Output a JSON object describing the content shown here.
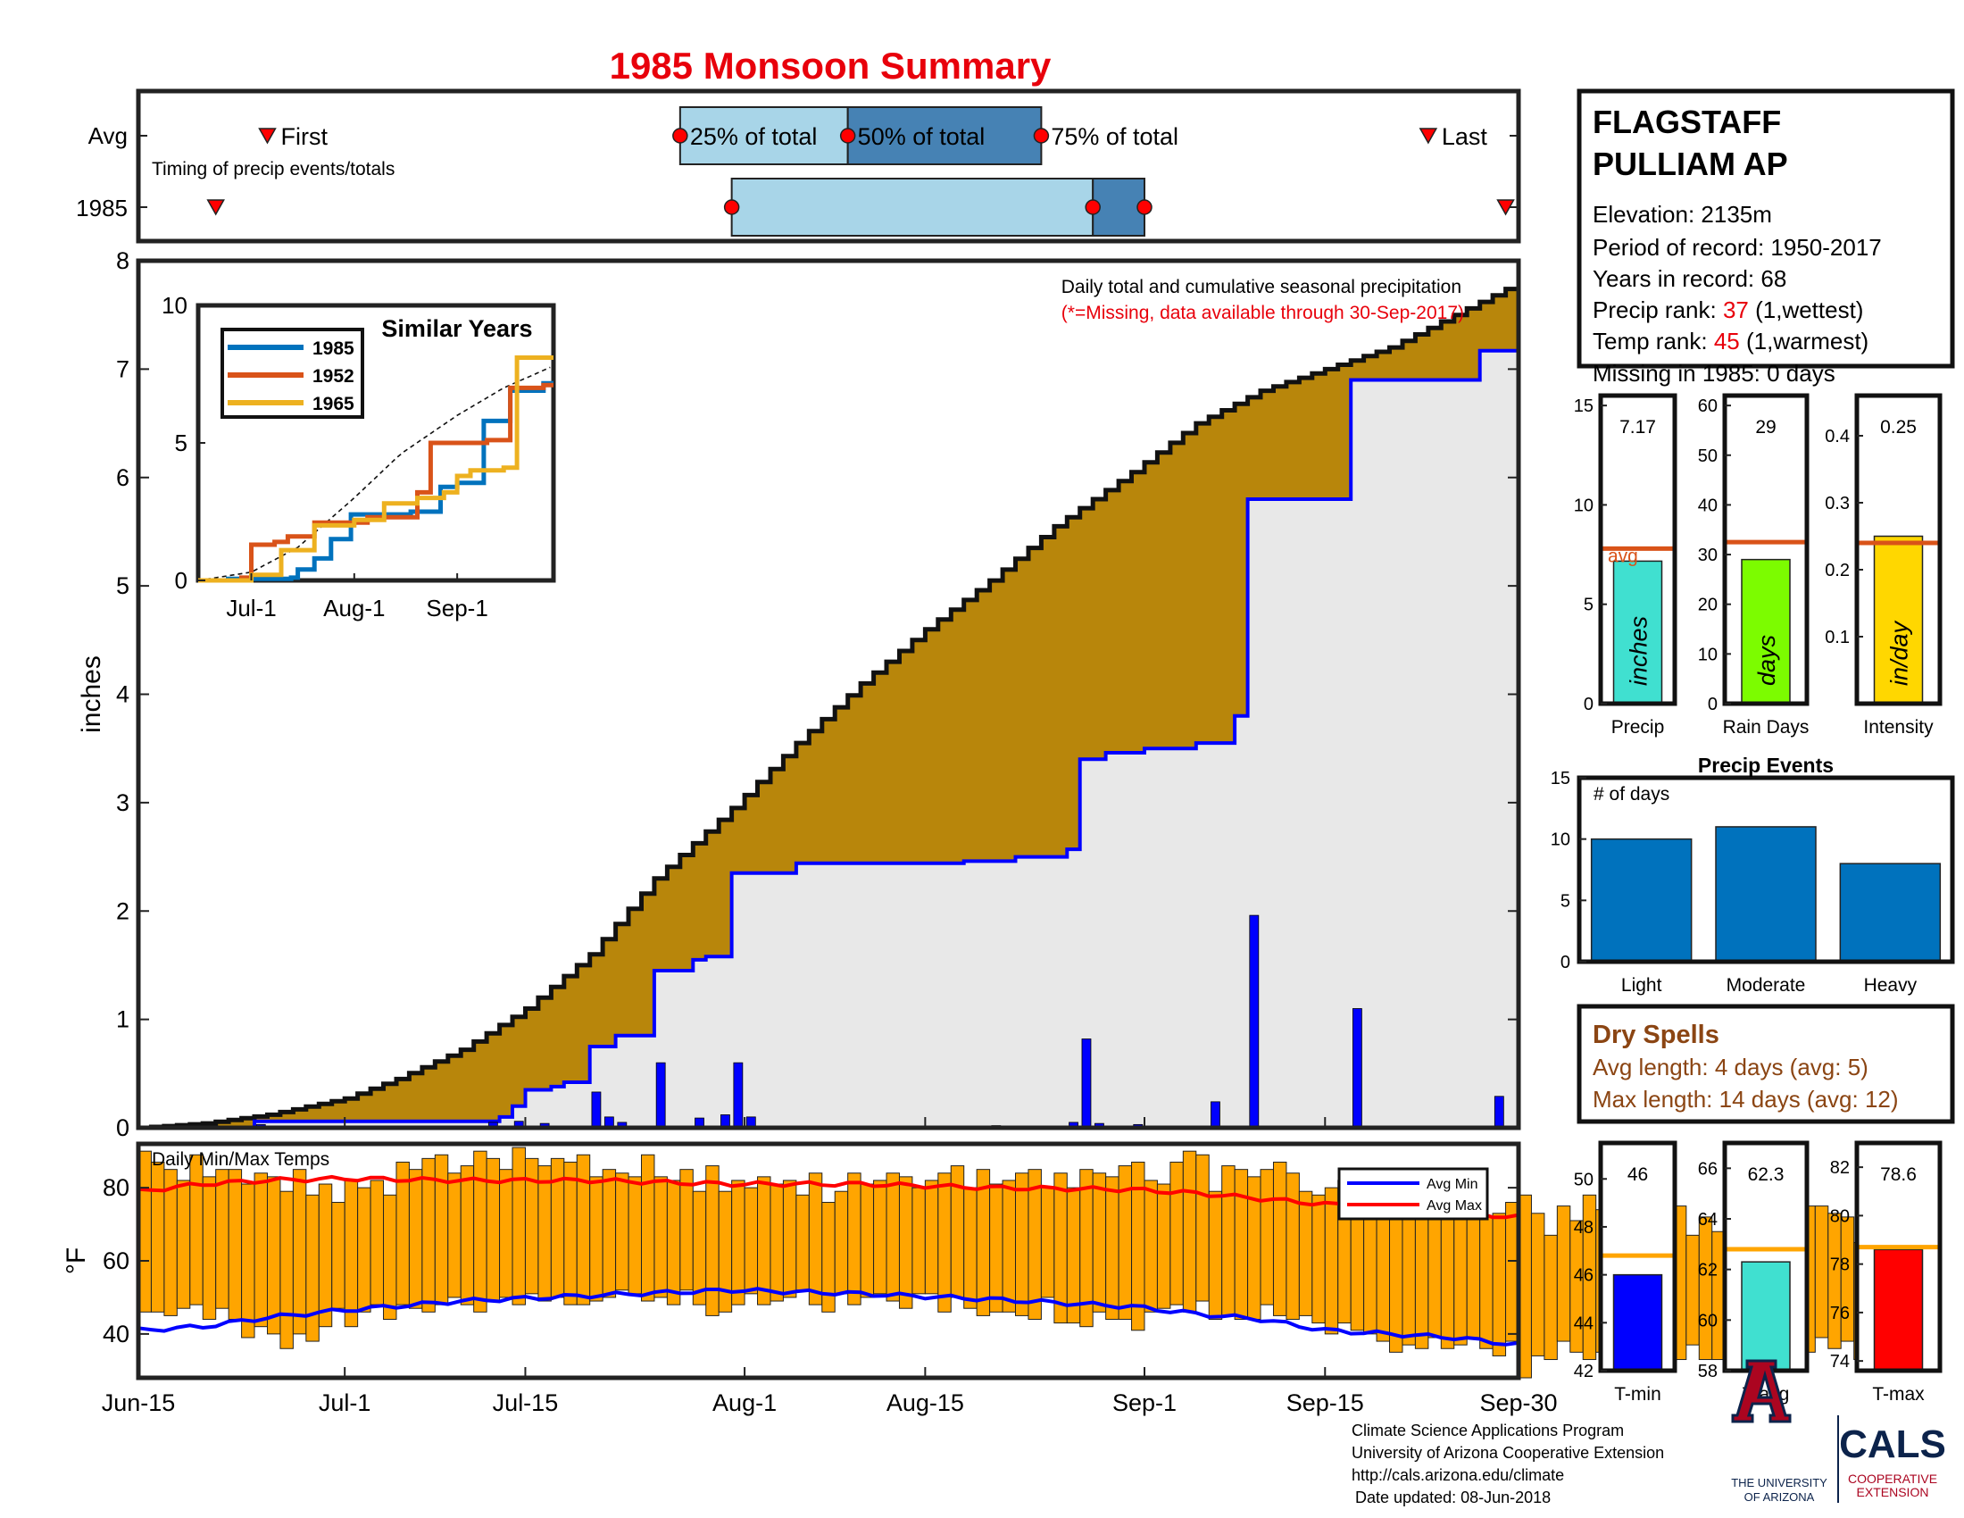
{
  "title": "1985 Monsoon Summary",
  "timing": {
    "row_avg": "Avg",
    "row_year": "1985",
    "caption": "Timing of precip events/totals",
    "first_label": "First",
    "last_label": "Last",
    "p25_label": "25% of total",
    "p50_label": "50% of total",
    "p75_label": "75% of total",
    "avg_first": "2024-06-25",
    "avg_last": "2024-09-23",
    "avg_p25": "2024-07-27",
    "avg_p50": "2024-08-09",
    "avg_p75": "2024-08-24",
    "yr_first": "2024-06-21",
    "yr_last": "2024-09-29",
    "yr_p25": "2024-07-31",
    "yr_p50": "2024-08-28",
    "yr_p75": "2024-09-01",
    "colors": {
      "light": "#a8d5e8",
      "dark": "#4682b4",
      "marker": "#ff0000"
    }
  },
  "station": {
    "name_line1": "FLAGSTAFF",
    "name_line2": "PULLIAM AP",
    "elevation": "Elevation: 2135m",
    "period": "Period of record: 1950-2017",
    "years": "Years in record: 68",
    "precip_rank_prefix": "Precip rank: ",
    "precip_rank": "37",
    "precip_rank_suffix": " (1,wettest)",
    "temp_rank_prefix": "Temp rank: ",
    "temp_rank": "45",
    "temp_rank_suffix": " (1,warmest)",
    "missing": "Missing in 1985: 0 days"
  },
  "footer": {
    "line1": "Climate Science Applications Program",
    "line2": "University of Arizona Cooperative Extension",
    "line3": "http://cals.arizona.edu/climate",
    "line4": "Date updated: 08-Jun-2018",
    "ua_name1": "THE UNIVERSITY",
    "ua_name2": "OF ARIZONA",
    "cals": "CALS",
    "cals_sub1": "COOPERATIVE",
    "cals_sub2": "EXTENSION"
  },
  "chart_data": [
    {
      "type": "area",
      "id": "cumulative",
      "annotation": "Daily total and cumulative seasonal precipitation",
      "annotation_note": "(*=Missing, data available through 30-Sep-2017)",
      "ylabel": "inches",
      "ylim": [
        0,
        8
      ],
      "yticks": [
        0,
        1,
        2,
        3,
        4,
        5,
        6,
        7,
        8
      ],
      "xlim": [
        "2024-06-15",
        "2024-09-30"
      ],
      "xticks": [
        "2024-06-15",
        "2024-07-01",
        "2024-07-15",
        "2024-08-01",
        "2024-08-15",
        "2024-09-01",
        "2024-09-15",
        "2024-09-30"
      ],
      "xticklabels": [
        "Jun-15",
        "Jul-1",
        "Jul-15",
        "Aug-1",
        "Aug-15",
        "Sep-1",
        "Sep-15",
        "Sep-30"
      ],
      "avg_cumulative": {
        "x": [
          "2024-06-15",
          "2024-06-20",
          "2024-06-25",
          "2024-07-01",
          "2024-07-05",
          "2024-07-10",
          "2024-07-15",
          "2024-07-20",
          "2024-07-25",
          "2024-07-31",
          "2024-08-05",
          "2024-08-10",
          "2024-08-15",
          "2024-08-20",
          "2024-08-25",
          "2024-08-31",
          "2024-09-05",
          "2024-09-10",
          "2024-09-15",
          "2024-09-20",
          "2024-09-25",
          "2024-09-30"
        ],
        "y": [
          0,
          0.04,
          0.12,
          0.27,
          0.45,
          0.72,
          1.1,
          1.6,
          2.3,
          2.95,
          3.55,
          4.1,
          4.6,
          5.05,
          5.55,
          6.05,
          6.5,
          6.8,
          7.0,
          7.2,
          7.5,
          7.8
        ]
      },
      "year_cumulative": {
        "x": [
          "2024-06-15",
          "2024-06-24",
          "2024-07-13",
          "2024-07-14",
          "2024-07-15",
          "2024-07-17",
          "2024-07-18",
          "2024-07-20",
          "2024-07-22",
          "2024-07-25",
          "2024-07-28",
          "2024-07-29",
          "2024-07-31",
          "2024-08-05",
          "2024-08-18",
          "2024-08-22",
          "2024-08-26",
          "2024-08-27",
          "2024-08-29",
          "2024-09-01",
          "2024-09-05",
          "2024-09-08",
          "2024-09-09",
          "2024-09-16",
          "2024-09-17",
          "2024-09-26",
          "2024-09-27",
          "2024-09-30"
        ],
        "y": [
          0,
          0.06,
          0.1,
          0.2,
          0.35,
          0.38,
          0.42,
          0.75,
          0.85,
          1.45,
          1.55,
          1.58,
          2.35,
          2.44,
          2.46,
          2.5,
          2.57,
          3.4,
          3.46,
          3.5,
          3.55,
          3.8,
          5.8,
          5.8,
          6.9,
          6.9,
          7.17,
          7.17
        ]
      },
      "daily_bars": {
        "x": [
          "2024-06-24",
          "2024-07-12",
          "2024-07-14",
          "2024-07-16",
          "2024-07-20",
          "2024-07-21",
          "2024-07-22",
          "2024-07-25",
          "2024-07-28",
          "2024-07-30",
          "2024-07-31",
          "2024-08-01",
          "2024-08-20",
          "2024-08-26",
          "2024-08-27",
          "2024-08-28",
          "2024-08-31",
          "2024-09-06",
          "2024-09-09",
          "2024-09-17",
          "2024-09-28"
        ],
        "y": [
          0.03,
          0.05,
          0.06,
          0.04,
          0.33,
          0.1,
          0.05,
          0.6,
          0.09,
          0.12,
          0.6,
          0.1,
          0.02,
          0.05,
          0.82,
          0.04,
          0.03,
          0.24,
          1.96,
          1.1,
          0.29
        ]
      },
      "colors": {
        "avg_fill": "#b8860b",
        "year_fill": "#e8e8e8",
        "year_line": "#0000ff",
        "bars": "#0000ff"
      }
    },
    {
      "type": "line",
      "id": "similar",
      "title": "Similar Years",
      "ylim": [
        0,
        10
      ],
      "yticks": [
        0,
        5,
        10
      ],
      "xlim": [
        "2024-06-15",
        "2024-09-30"
      ],
      "xticks": [
        "2024-07-01",
        "2024-08-01",
        "2024-09-01"
      ],
      "xticklabels": [
        "Jul-1",
        "Aug-1",
        "Sep-1"
      ],
      "avg": {
        "x": [
          "2024-06-15",
          "2024-07-01",
          "2024-07-15",
          "2024-08-01",
          "2024-08-15",
          "2024-09-01",
          "2024-09-15",
          "2024-09-30"
        ],
        "y": [
          0,
          0.3,
          1.2,
          3.0,
          4.6,
          6.0,
          7.0,
          7.8
        ]
      },
      "series": [
        {
          "name": "1985",
          "color": "#0072bd",
          "x": [
            "2024-06-15",
            "2024-06-24",
            "2024-07-13",
            "2024-07-15",
            "2024-07-20",
            "2024-07-25",
            "2024-07-31",
            "2024-08-18",
            "2024-08-27",
            "2024-09-01",
            "2024-09-09",
            "2024-09-17",
            "2024-09-27",
            "2024-09-30"
          ],
          "y": [
            0,
            0.06,
            0.1,
            0.4,
            0.8,
            1.5,
            2.4,
            2.5,
            3.4,
            3.55,
            5.8,
            6.9,
            7.17,
            7.17
          ]
        },
        {
          "name": "1952",
          "color": "#d95319",
          "x": [
            "2024-06-15",
            "2024-06-28",
            "2024-07-01",
            "2024-07-08",
            "2024-07-12",
            "2024-07-20",
            "2024-08-05",
            "2024-08-12",
            "2024-08-20",
            "2024-08-24",
            "2024-09-10",
            "2024-09-17",
            "2024-09-27",
            "2024-09-30"
          ],
          "y": [
            0,
            0.1,
            1.3,
            1.4,
            1.6,
            2.1,
            2.3,
            2.3,
            3.2,
            5.0,
            5.1,
            7.0,
            7.1,
            7.1
          ]
        },
        {
          "name": "1965",
          "color": "#edb120",
          "x": [
            "2024-06-15",
            "2024-07-01",
            "2024-07-10",
            "2024-07-20",
            "2024-08-01",
            "2024-08-06",
            "2024-08-10",
            "2024-08-20",
            "2024-08-28",
            "2024-09-01",
            "2024-09-05",
            "2024-09-15",
            "2024-09-19",
            "2024-09-30"
          ],
          "y": [
            0,
            0.2,
            1.1,
            2.0,
            2.2,
            2.2,
            2.8,
            3.0,
            3.2,
            3.8,
            4.0,
            4.1,
            8.1,
            8.1
          ]
        }
      ]
    },
    {
      "type": "bar",
      "id": "precip_total",
      "categories": [
        "Precip"
      ],
      "values": [
        7.17
      ],
      "value_label": "7.17",
      "avg": 7.8,
      "avg_label": "avg",
      "bar_label": "inches",
      "ylim": [
        0,
        15.5
      ],
      "yticks": [
        0,
        5,
        10,
        15
      ],
      "color": "#40e0d0"
    },
    {
      "type": "bar",
      "id": "rain_days",
      "categories": [
        "Rain Days"
      ],
      "values": [
        29
      ],
      "value_label": "29",
      "avg": 32.5,
      "bar_label": "days",
      "ylim": [
        0,
        62
      ],
      "yticks": [
        0,
        10,
        20,
        30,
        40,
        50,
        60
      ],
      "color": "#7cfc00"
    },
    {
      "type": "bar",
      "id": "intensity",
      "categories": [
        "Intensity"
      ],
      "values": [
        0.25
      ],
      "value_label": "0.25",
      "avg": 0.24,
      "bar_label": "in/day",
      "ylim": [
        0,
        0.46
      ],
      "yticks": [
        0.1,
        0.2,
        0.3,
        0.4
      ],
      "color": "#ffd700"
    },
    {
      "type": "bar",
      "id": "precip_events",
      "title": "Precip Events",
      "annotation": "# of days",
      "categories": [
        "Light",
        "Moderate",
        "Heavy"
      ],
      "values": [
        10,
        11,
        8
      ],
      "ylim": [
        0,
        15
      ],
      "yticks": [
        0,
        5,
        10,
        15
      ],
      "color": "#0072bd"
    },
    {
      "type": "table",
      "id": "dry_spells",
      "title": "Dry Spells",
      "rows": [
        "Avg length: 4 days (avg: 5)",
        "Max length: 14 days (avg: 12)"
      ],
      "color": "#8b4513"
    },
    {
      "type": "bar",
      "id": "daily_temps",
      "annotation": "Daily Min/Max Temps",
      "ylabel": "°F",
      "ylim": [
        28,
        92
      ],
      "yticks": [
        40,
        60,
        80
      ],
      "legend": [
        "Avg Min",
        "Avg Max"
      ],
      "legend_position": "top-right",
      "start_date": "2024-06-15",
      "tmax": [
        90,
        87,
        85,
        82,
        89,
        83,
        85,
        85,
        81,
        84,
        83,
        79,
        85,
        78,
        81,
        76,
        82,
        80,
        82,
        78,
        87,
        85,
        88,
        89,
        84,
        86,
        90,
        88,
        85,
        91,
        88,
        86,
        88,
        87,
        89,
        83,
        85,
        84,
        83,
        89,
        83,
        82,
        85,
        79,
        86,
        79,
        82,
        80,
        83,
        81,
        82,
        78,
        84,
        76,
        79,
        84,
        81,
        82,
        84,
        83,
        80,
        82,
        84,
        86,
        80,
        85,
        81,
        82,
        84,
        85,
        80,
        84,
        80,
        85,
        84,
        83,
        86,
        87,
        82,
        81,
        87,
        90,
        89,
        79,
        86,
        85,
        83,
        85,
        87,
        84,
        79,
        78,
        80,
        82,
        80,
        83,
        78,
        74,
        73,
        72,
        73,
        76,
        78,
        76,
        72,
        73,
        76,
        78,
        73,
        67,
        75,
        71,
        78,
        74,
        73,
        65,
        70,
        75,
        72,
        75,
        67,
        72,
        68,
        75,
        77,
        66,
        72,
        74,
        74,
        75,
        75,
        73,
        72,
        65,
        70,
        66
      ],
      "tmin": [
        46,
        46,
        45,
        47,
        48,
        44,
        47,
        44,
        39,
        42,
        40,
        36,
        40,
        38,
        42,
        47,
        42,
        46,
        48,
        44,
        48,
        47,
        46,
        48,
        50,
        48,
        46,
        49,
        50,
        48,
        51,
        49,
        50,
        48,
        48,
        49,
        50,
        52,
        51,
        49,
        50,
        48,
        52,
        48,
        45,
        46,
        48,
        51,
        48,
        49,
        50,
        52,
        48,
        46,
        51,
        48,
        50,
        51,
        49,
        47,
        51,
        51,
        46,
        50,
        47,
        45,
        46,
        46,
        45,
        44,
        50,
        43,
        43,
        42,
        46,
        44,
        44,
        41,
        46,
        47,
        48,
        46,
        49,
        44,
        45,
        44,
        44,
        48,
        45,
        44,
        45,
        43,
        40,
        43,
        41,
        40,
        38,
        35,
        37,
        36,
        39,
        36,
        37,
        39,
        36,
        34,
        38,
        28,
        34,
        33,
        38,
        35,
        33,
        35,
        38,
        37,
        31,
        38,
        35,
        33,
        37,
        33,
        33,
        34,
        30,
        31,
        36,
        39,
        38,
        35,
        39,
        36,
        38,
        33,
        35,
        37
      ],
      "avg_min": {
        "x": [
          "2024-06-15",
          "2024-06-20",
          "2024-06-25",
          "2024-07-01",
          "2024-07-10",
          "2024-07-20",
          "2024-07-31",
          "2024-08-10",
          "2024-08-20",
          "2024-08-31",
          "2024-09-05",
          "2024-09-10",
          "2024-09-15",
          "2024-09-20",
          "2024-09-25",
          "2024-09-30"
        ],
        "y": [
          41,
          42,
          44.5,
          46.5,
          49,
          50.5,
          52,
          51,
          49.5,
          47.5,
          45.5,
          44,
          41,
          40,
          39,
          37
        ]
      },
      "avg_max": {
        "x": [
          "2024-06-15",
          "2024-06-20",
          "2024-06-25",
          "2024-07-01",
          "2024-07-10",
          "2024-07-20",
          "2024-07-31",
          "2024-08-10",
          "2024-08-20",
          "2024-08-31",
          "2024-09-05",
          "2024-09-10",
          "2024-09-15",
          "2024-09-20",
          "2024-09-25",
          "2024-09-30"
        ],
        "y": [
          79,
          81,
          82,
          82.5,
          82,
          82,
          81,
          81,
          80,
          79.5,
          78.5,
          77,
          75.5,
          74.5,
          73,
          72
        ]
      },
      "colors": {
        "bars": "#ffa500",
        "avg_min": "#0000ff",
        "avg_max": "#ff0000"
      }
    },
    {
      "type": "bar",
      "id": "tmin_season",
      "categories": [
        "T-min"
      ],
      "values": [
        46
      ],
      "value_label": "46",
      "avg": 46.8,
      "ylim": [
        42,
        51.5
      ],
      "yticks": [
        42,
        44,
        46,
        48,
        50
      ],
      "color": "#0000ff"
    },
    {
      "type": "bar",
      "id": "tavg_season",
      "categories": [
        "T-avg"
      ],
      "values": [
        62.3
      ],
      "value_label": "62.3",
      "avg": 62.8,
      "ylim": [
        58,
        67
      ],
      "yticks": [
        58,
        60,
        62,
        64,
        66
      ],
      "color": "#40e0d0"
    },
    {
      "type": "bar",
      "id": "tmax_season",
      "categories": [
        "T-max"
      ],
      "values": [
        78.6
      ],
      "value_label": "78.6",
      "avg": 78.7,
      "ylim": [
        73.6,
        83
      ],
      "yticks": [
        74,
        76,
        78,
        80,
        82
      ],
      "color": "#ff0000"
    }
  ]
}
